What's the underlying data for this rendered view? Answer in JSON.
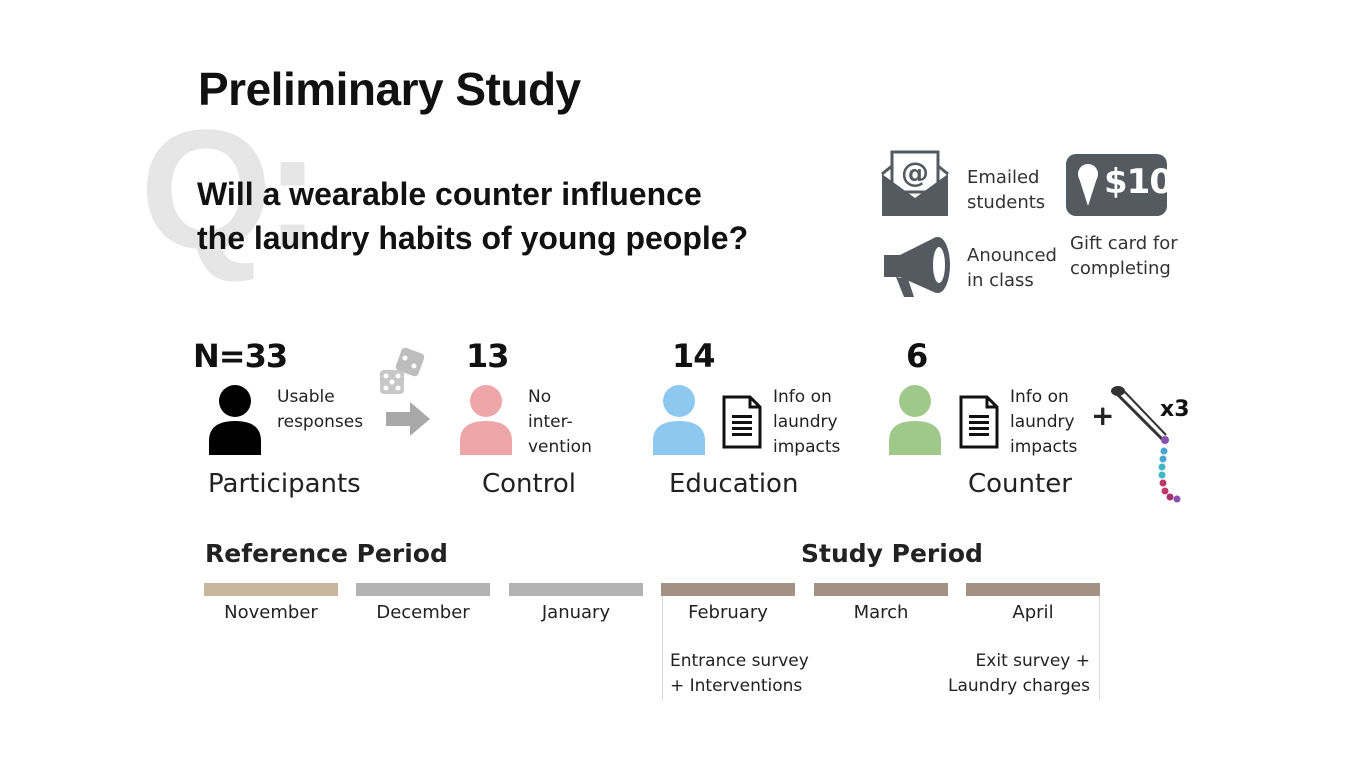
{
  "title": "Preliminary Study",
  "q_label": "Q:",
  "question_line1": "Will a wearable counter influence",
  "question_line2": "the laundry habits of young people?",
  "recruitment": {
    "emailed": [
      "Emailed",
      "students"
    ],
    "announced": [
      "Anounced",
      "in class"
    ],
    "gift_amount": "$10",
    "gift": [
      "Gift card for",
      "completing"
    ]
  },
  "participants": {
    "count": "N=33",
    "note": [
      "Usable",
      "responses"
    ],
    "label": "Participants"
  },
  "groups": [
    {
      "count": "13",
      "note": [
        "No",
        "inter-",
        "vention"
      ],
      "label": "Control",
      "color": "#efa6a9"
    },
    {
      "count": "14",
      "note": [
        "Info on",
        "laundry",
        "impacts"
      ],
      "label": "Education",
      "color": "#8cc8ef"
    },
    {
      "count": "6",
      "note": [
        "Info on",
        "laundry",
        "impacts"
      ],
      "label": "Counter",
      "color": "#9fc98a",
      "extra": "x3",
      "plus": "+"
    }
  ],
  "timeline": {
    "reference_label": "Reference Period",
    "study_label": "Study Period",
    "months": [
      {
        "name": "November",
        "color": "#c8b79d"
      },
      {
        "name": "December",
        "color": "#b3b3b3"
      },
      {
        "name": "January",
        "color": "#b3b3b3"
      },
      {
        "name": "February",
        "color": "#a39283"
      },
      {
        "name": "March",
        "color": "#a39283"
      },
      {
        "name": "April",
        "color": "#a39283"
      }
    ],
    "start_note": [
      "Entrance survey",
      "+ Interventions"
    ],
    "end_note": [
      "Exit survey +",
      "Laundry charges"
    ]
  },
  "colors": {
    "icon_gray": "#555a60",
    "participant": "#000000",
    "arrow": "#a8a8a8"
  }
}
